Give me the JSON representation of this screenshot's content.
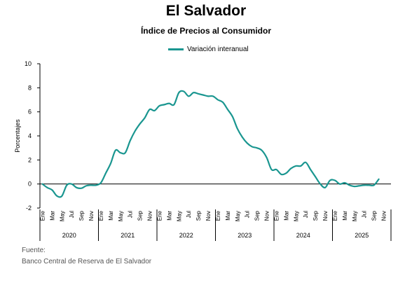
{
  "header": {
    "title": "El Salvador",
    "subtitle": "Índice de Precios al Consumidor"
  },
  "source": {
    "label": "Fuente:",
    "text": "Banco Central de Reserva de El Salvador"
  },
  "chart_data": {
    "type": "line",
    "ylabel": "Porcentajes",
    "ylim": [
      -2,
      10
    ],
    "yticks": [
      -2,
      0,
      2,
      4,
      6,
      8,
      10
    ],
    "grid": false,
    "legend": "top-center",
    "color": "#1a9690",
    "month_labels": [
      "Ene",
      "Mar",
      "May",
      "Jul",
      "Sep",
      "Nov"
    ],
    "years": [
      "2020",
      "2021",
      "2022",
      "2023",
      "2024",
      "2025"
    ],
    "series": [
      {
        "name": "Variación interanual",
        "x_start": "2020-01",
        "values": [
          0.0,
          -0.3,
          -0.5,
          -1.0,
          -1.0,
          -0.1,
          0.0,
          -0.3,
          -0.35,
          -0.15,
          -0.1,
          -0.1,
          0.1,
          0.9,
          1.7,
          2.8,
          2.6,
          2.6,
          3.6,
          4.4,
          5.0,
          5.5,
          6.2,
          6.1,
          6.5,
          6.6,
          6.7,
          6.6,
          7.6,
          7.7,
          7.3,
          7.6,
          7.5,
          7.4,
          7.3,
          7.3,
          7.0,
          6.8,
          6.2,
          5.6,
          4.6,
          3.9,
          3.4,
          3.1,
          3.0,
          2.8,
          2.2,
          1.2,
          1.2,
          0.8,
          0.9,
          1.3,
          1.5,
          1.5,
          1.8,
          1.2,
          0.6,
          0.0,
          -0.3,
          0.3,
          0.3,
          0.0,
          0.1,
          -0.1,
          -0.2,
          -0.15,
          -0.1,
          -0.1,
          -0.1,
          0.4
        ]
      }
    ]
  }
}
